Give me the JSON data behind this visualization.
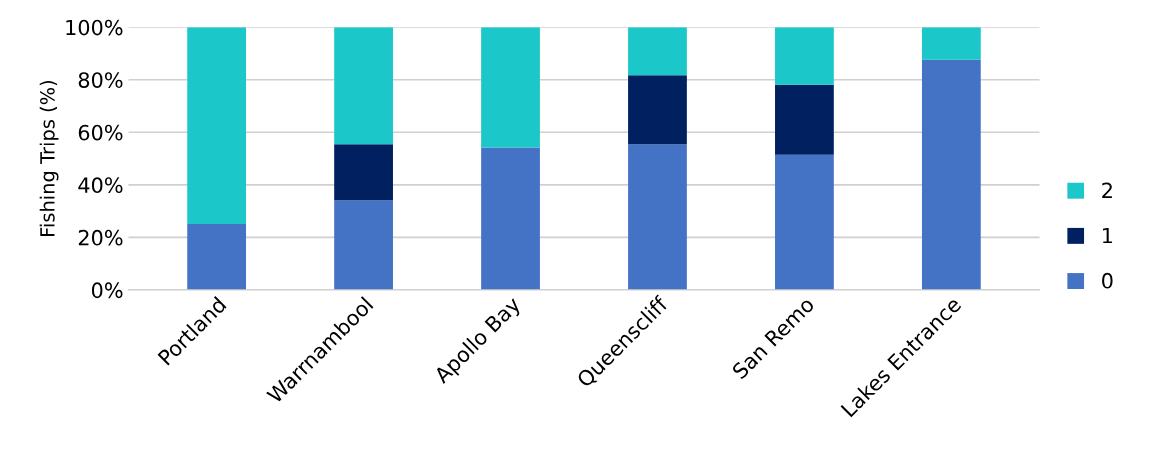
{
  "chart_data": {
    "type": "bar",
    "stacked": true,
    "ylabel": "Fishing Trips (%)",
    "categories": [
      "Portland",
      "Warrnambool",
      "Apollo Bay",
      "Queenscliff",
      "San Remo",
      "Lakes Entrance"
    ],
    "series": [
      {
        "name": "0",
        "color": "#4472c4",
        "values": [
          25.1,
          34.1,
          54.2,
          55.4,
          51.4,
          87.6
        ]
      },
      {
        "name": "1",
        "color": "#002060",
        "values": [
          0,
          21.3,
          0,
          26.3,
          26.7,
          0
        ]
      },
      {
        "name": "2",
        "color": "#1bc7c9",
        "values": [
          74.9,
          44.6,
          45.8,
          18.3,
          21.9,
          12.4
        ]
      }
    ],
    "ylim": [
      0,
      100
    ],
    "yticks": [
      {
        "value": 0,
        "label": "0%"
      },
      {
        "value": 20,
        "label": "20%"
      },
      {
        "value": 40,
        "label": "40%"
      },
      {
        "value": 60,
        "label": "60%"
      },
      {
        "value": 80,
        "label": "80%"
      },
      {
        "value": 100,
        "label": "100%"
      }
    ],
    "grid": "y",
    "legend": "right"
  }
}
